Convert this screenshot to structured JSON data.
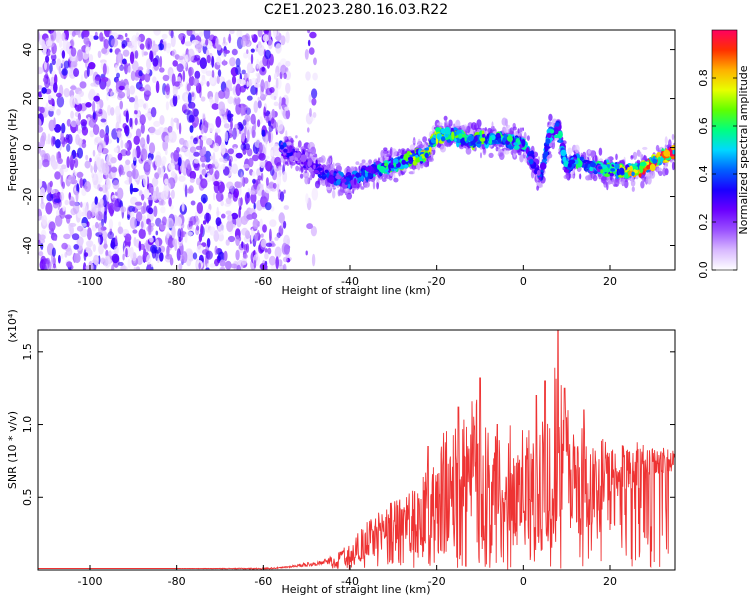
{
  "title": "C2E1.2023.280.16.03.R22",
  "chart_data": [
    {
      "type": "heatmap",
      "xlabel": "Height of straight line (km)",
      "ylabel": "Frequency (Hz)",
      "xlim": [
        -112,
        35
      ],
      "ylim": [
        -50,
        48
      ],
      "xticks": [
        -100,
        -80,
        -60,
        -40,
        -20,
        0,
        20
      ],
      "yticks": [
        -40,
        -20,
        0,
        20,
        40
      ],
      "grid": false,
      "colorbar": {
        "label": "Normalized spectral amplitude",
        "range": [
          0,
          1
        ],
        "ticks": [
          0.0,
          0.2,
          0.4,
          0.6,
          0.8
        ],
        "colormap": [
          "#ffffff",
          "#d8b8ff",
          "#9a50ff",
          "#6a00ff",
          "#1a00ff",
          "#0060ff",
          "#00d8ff",
          "#00ff80",
          "#60ff00",
          "#e8ff00",
          "#ffb000",
          "#ff3000",
          "#ff0060"
        ]
      },
      "noise_region": {
        "x_range": [
          -112,
          -48
        ],
        "freq_range": [
          -50,
          48
        ],
        "typical_amplitude": 0.15
      },
      "ridge": {
        "x": [
          -56,
          -52,
          -48,
          -44,
          -40,
          -36,
          -32,
          -28,
          -24,
          -22,
          -20,
          -16,
          -12,
          -8,
          -4,
          0,
          2,
          4,
          6,
          8,
          10,
          12,
          16,
          20,
          24,
          28,
          32,
          35
        ],
        "freq": [
          0,
          -4,
          -8,
          -12,
          -14,
          -10,
          -8,
          -6,
          -3,
          -2,
          5,
          5,
          3,
          4,
          3,
          2,
          -5,
          -12,
          5,
          8,
          -8,
          -5,
          -8,
          -9,
          -10,
          -8,
          -4,
          -2
        ],
        "amplitude": [
          0.3,
          0.2,
          0.25,
          0.3,
          0.35,
          0.4,
          0.45,
          0.5,
          0.55,
          0.6,
          0.55,
          0.5,
          0.5,
          0.55,
          0.5,
          0.45,
          0.35,
          0.3,
          0.4,
          0.45,
          0.4,
          0.45,
          0.4,
          0.5,
          0.6,
          0.7,
          0.85,
          0.95
        ]
      }
    },
    {
      "type": "line",
      "xlabel": "Height of straight line (km)",
      "ylabel": "SNR (10 * v/v)",
      "yscale_label": "(x10⁴)",
      "xlim": [
        -112,
        35
      ],
      "ylim": [
        0,
        1.65
      ],
      "xticks": [
        -100,
        -80,
        -60,
        -40,
        -20,
        0,
        20
      ],
      "yticks": [
        0.5,
        1.0,
        1.5
      ],
      "ytick_labels": [
        "0.5",
        "1.0",
        "1.5"
      ],
      "color": "#ee3333",
      "grid": false,
      "series": [
        {
          "x": [
            -112,
            -100,
            -90,
            -80,
            -70,
            -60,
            -56,
            -52,
            -50,
            -48,
            -46,
            -44,
            -42,
            -40,
            -38,
            -36,
            -34,
            -32,
            -30,
            -28,
            -26,
            -24,
            -22,
            -20,
            -18,
            -16,
            -14,
            -12,
            -10,
            -8,
            -6,
            -4,
            -2,
            0,
            2,
            4,
            6,
            8,
            10,
            12,
            14,
            16,
            18,
            20,
            22,
            24,
            26,
            28,
            30,
            32,
            35
          ],
          "values": [
            0.01,
            0.01,
            0.01,
            0.01,
            0.01,
            0.01,
            0.015,
            0.03,
            0.04,
            0.04,
            0.06,
            0.07,
            0.1,
            0.13,
            0.17,
            0.2,
            0.24,
            0.3,
            0.35,
            0.38,
            0.38,
            0.35,
            0.4,
            0.42,
            0.55,
            0.6,
            0.72,
            0.75,
            0.6,
            0.65,
            0.62,
            0.55,
            0.65,
            0.58,
            0.6,
            0.65,
            0.7,
            0.9,
            0.75,
            0.65,
            0.6,
            0.62,
            0.65,
            0.66,
            0.68,
            0.7,
            0.72,
            0.72,
            0.74,
            0.75,
            0.76
          ],
          "envelope": [
            0.01,
            0.01,
            0.01,
            0.01,
            0.012,
            0.015,
            0.02,
            0.04,
            0.06,
            0.05,
            0.08,
            0.1,
            0.15,
            0.2,
            0.3,
            0.35,
            0.4,
            0.45,
            0.5,
            0.6,
            0.58,
            0.55,
            0.85,
            0.7,
            1.15,
            1.0,
            1.1,
            1.2,
            1.35,
            1.0,
            0.95,
            0.9,
            1.2,
            1.0,
            1.05,
            1.2,
            1.3,
            1.65,
            1.2,
            1.0,
            1.1,
            0.95,
            1.0,
            0.85,
            0.9,
            0.85,
            0.9,
            0.88,
            0.85,
            0.85,
            0.85
          ],
          "peaks": [
            {
              "x": -22,
              "y": 0.85
            },
            {
              "x": -15,
              "y": 1.12
            },
            {
              "x": -10,
              "y": 1.32
            },
            {
              "x": -6,
              "y": 1.0
            },
            {
              "x": 3,
              "y": 1.2
            },
            {
              "x": 5,
              "y": 1.3
            },
            {
              "x": 8,
              "y": 1.65
            },
            {
              "x": 9.5,
              "y": 1.25
            },
            {
              "x": 14,
              "y": 1.1
            }
          ]
        }
      ]
    }
  ]
}
